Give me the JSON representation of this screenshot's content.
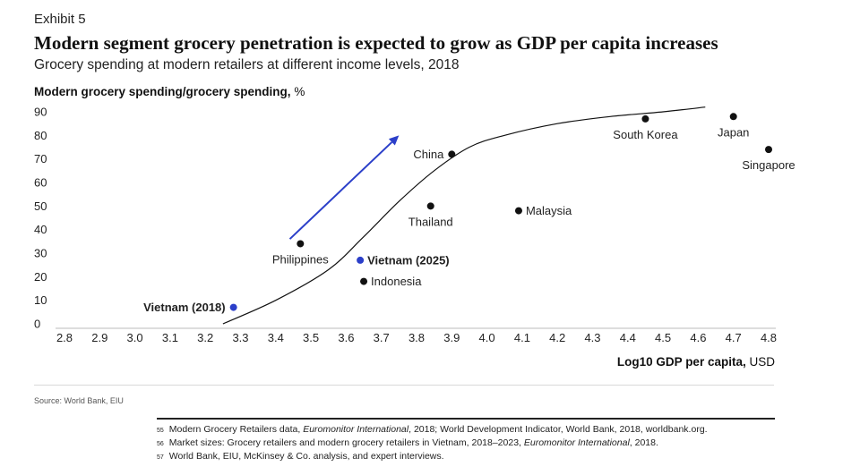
{
  "exhibit": "Exhibit 5",
  "title": "Modern segment grocery penetration is expected to grow as GDP per capita increases",
  "subtitle": "Grocery spending at modern retailers at different income levels, 2018",
  "colors": {
    "point": "#111111",
    "highlight": "#2b3fc9",
    "curve": "#111111",
    "arrow": "#2b3fc9"
  },
  "chart_data": {
    "type": "scatter",
    "title": "Modern segment grocery penetration is expected to grow as GDP per capita increases",
    "ylabel_bold": "Modern grocery spending/grocery spending,",
    "ylabel_unit": "%",
    "xlabel_bold": "Log10 GDP per capita,",
    "xlabel_unit": "USD",
    "xlim": [
      2.8,
      4.8
    ],
    "ylim": [
      0,
      90
    ],
    "x_ticks": [
      "2.8",
      "2.9",
      "3.0",
      "3.1",
      "3.2",
      "3.3",
      "3.4",
      "3.5",
      "3.6",
      "3.7",
      "3.8",
      "3.9",
      "4.0",
      "4.1",
      "4.2",
      "4.3",
      "4.4",
      "4.5",
      "4.6",
      "4.7",
      "4.8"
    ],
    "y_ticks": [
      "0",
      "10",
      "20",
      "30",
      "40",
      "50",
      "60",
      "70",
      "80",
      "90"
    ],
    "points": [
      {
        "label": "Vietnam (2018)",
        "x": 3.28,
        "y": 7,
        "highlight": true,
        "bold": true,
        "label_pos": "left"
      },
      {
        "label": "Philippines",
        "x": 3.47,
        "y": 34,
        "highlight": false,
        "bold": false,
        "label_pos": "below"
      },
      {
        "label": "Vietnam (2025)",
        "x": 3.64,
        "y": 27,
        "highlight": true,
        "bold": true,
        "label_pos": "right"
      },
      {
        "label": "Indonesia",
        "x": 3.65,
        "y": 18,
        "highlight": false,
        "bold": false,
        "label_pos": "right"
      },
      {
        "label": "Thailand",
        "x": 3.84,
        "y": 50,
        "highlight": false,
        "bold": false,
        "label_pos": "below"
      },
      {
        "label": "China",
        "x": 3.9,
        "y": 72,
        "highlight": false,
        "bold": false,
        "label_pos": "left"
      },
      {
        "label": "Malaysia",
        "x": 4.09,
        "y": 48,
        "highlight": false,
        "bold": false,
        "label_pos": "right"
      },
      {
        "label": "South Korea",
        "x": 4.45,
        "y": 87,
        "highlight": false,
        "bold": false,
        "label_pos": "below"
      },
      {
        "label": "Japan",
        "x": 4.7,
        "y": 88,
        "highlight": false,
        "bold": false,
        "label_pos": "below"
      },
      {
        "label": "Singapore",
        "x": 4.8,
        "y": 74,
        "highlight": false,
        "bold": false,
        "label_pos": "below"
      }
    ],
    "trend_curve": {
      "x": [
        3.25,
        3.4,
        3.55,
        3.65,
        3.75,
        3.85,
        3.95,
        4.05,
        4.2,
        4.35,
        4.5,
        4.62
      ],
      "y": [
        0,
        10,
        23,
        37,
        52,
        65,
        75,
        80,
        85,
        88,
        90,
        92
      ]
    },
    "arrow": {
      "from": [
        3.44,
        36
      ],
      "to": [
        3.75,
        80
      ]
    }
  },
  "source": "Source: World Bank, EIU",
  "footnotes": [
    {
      "num": "55",
      "pre": "Modern Grocery Retailers data, ",
      "ital": "Euromonitor International",
      "post": ", 2018; World Development Indicator, World Bank, 2018, worldbank.org."
    },
    {
      "num": "56",
      "pre": "Market sizes: Grocery retailers and modern grocery retailers in Vietnam, 2018–2023, ",
      "ital": "Euromonitor International",
      "post": ", 2018."
    },
    {
      "num": "57",
      "pre": "World Bank, EIU, McKinsey & Co. analysis, and expert interviews.",
      "ital": "",
      "post": ""
    }
  ]
}
